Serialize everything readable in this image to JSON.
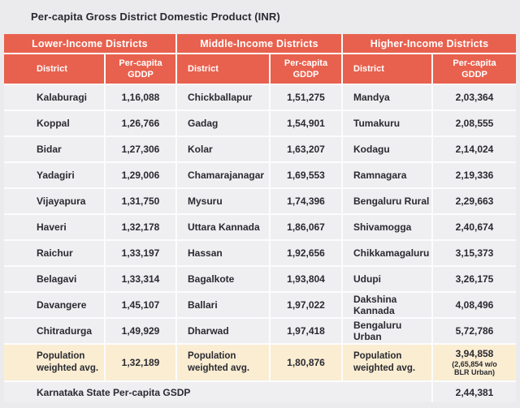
{
  "title": "Per-capita Gross District Domestic Product (INR)",
  "colors": {
    "header_red": "#e8614e",
    "row_bg": "#efeef1",
    "avg_row_bg": "#faedd2",
    "page_bg": "#ebeaed",
    "text": "#2a2a31"
  },
  "chart_data": {
    "type": "table",
    "title": "Per-capita Gross District Domestic Product (INR)",
    "columns": {
      "district": "District",
      "value": "Per-capita GDDP"
    },
    "groups": [
      {
        "label": "Lower-Income Districts",
        "rows": [
          {
            "district": "Kalaburagi",
            "value": "1,16,088"
          },
          {
            "district": "Koppal",
            "value": "1,26,766"
          },
          {
            "district": "Bidar",
            "value": "1,27,306"
          },
          {
            "district": "Yadagiri",
            "value": "1,29,006"
          },
          {
            "district": "Vijayapura",
            "value": "1,31,750"
          },
          {
            "district": "Haveri",
            "value": "1,32,178"
          },
          {
            "district": "Raichur",
            "value": "1,33,197"
          },
          {
            "district": "Belagavi",
            "value": "1,33,314"
          },
          {
            "district": "Davangere",
            "value": "1,45,107"
          },
          {
            "district": "Chitradurga",
            "value": "1,49,929"
          }
        ],
        "avg": {
          "label": "Population weighted avg.",
          "value": "1,32,189"
        }
      },
      {
        "label": "Middle-Income Districts",
        "rows": [
          {
            "district": "Chickballapur",
            "value": "1,51,275"
          },
          {
            "district": "Gadag",
            "value": "1,54,901"
          },
          {
            "district": "Kolar",
            "value": "1,63,207"
          },
          {
            "district": "Chamarajanagar",
            "value": "1,69,553"
          },
          {
            "district": "Mysuru",
            "value": "1,74,396"
          },
          {
            "district": "Uttara Kannada",
            "value": "1,86,067"
          },
          {
            "district": "Hassan",
            "value": "1,92,656"
          },
          {
            "district": "Bagalkote",
            "value": "1,93,804"
          },
          {
            "district": "Ballari",
            "value": "1,97,022"
          },
          {
            "district": "Dharwad",
            "value": "1,97,418"
          }
        ],
        "avg": {
          "label": "Population weighted avg.",
          "value": "1,80,876"
        }
      },
      {
        "label": "Higher-Income Districts",
        "rows": [
          {
            "district": "Mandya",
            "value": "2,03,364"
          },
          {
            "district": "Tumakuru",
            "value": "2,08,555"
          },
          {
            "district": "Kodagu",
            "value": "2,14,024"
          },
          {
            "district": "Ramnagara",
            "value": "2,19,336"
          },
          {
            "district": "Bengaluru Rural",
            "value": "2,29,663"
          },
          {
            "district": "Shivamogga",
            "value": "2,40,674"
          },
          {
            "district": "Chikkamagaluru",
            "value": "3,15,373"
          },
          {
            "district": "Udupi",
            "value": "3,26,175"
          },
          {
            "district": "Dakshina Kannada",
            "value": "4,08,496"
          },
          {
            "district": "Bengaluru Urban",
            "value": "5,72,786"
          }
        ],
        "avg": {
          "label": "Population weighted avg.",
          "value": "3,94,858",
          "note": "(2,65,854 w/o\nBLR Urban)"
        }
      }
    ],
    "footer": {
      "label": "Karnataka State Per-capita GSDP",
      "value": "2,44,381"
    }
  }
}
